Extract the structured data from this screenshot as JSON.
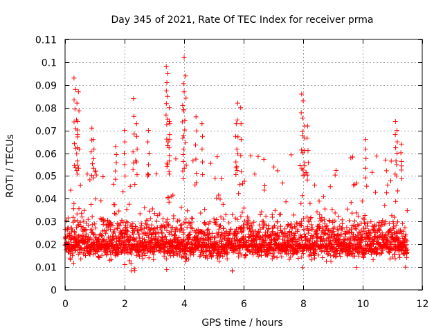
{
  "chart_data": {
    "type": "scatter",
    "title": "Day 345 of 2021, Rate Of TEC Index for receiver prma",
    "xlabel": "GPS time / hours",
    "ylabel": "ROTI / TECUs",
    "xlim": [
      0,
      12
    ],
    "ylim": [
      0,
      0.11
    ],
    "x_ticks": [
      0,
      2,
      4,
      6,
      8,
      10,
      12
    ],
    "x_tick_labels": [
      "0",
      "2",
      "4",
      "6",
      "8",
      "10",
      "12"
    ],
    "y_ticks": [
      0,
      0.01,
      0.02,
      0.03,
      0.04,
      0.05,
      0.06,
      0.07,
      0.08,
      0.09,
      0.1,
      0.11
    ],
    "y_tick_labels": [
      "0",
      "0.01",
      "0.02",
      "0.03",
      "0.04",
      "0.05",
      "0.06",
      "0.07",
      "0.08",
      "0.09",
      "0.1",
      "0.11"
    ],
    "grid": true,
    "marker": "+",
    "color": "#ff0000",
    "series": [
      {
        "name": "ROTI",
        "x_range": [
          0.0,
          11.5
        ],
        "typical_range": [
          0.008,
          0.045
        ],
        "median_estimate": 0.02,
        "peaks": [
          {
            "x": 0.3,
            "y": 0.093
          },
          {
            "x": 0.35,
            "y": 0.088
          },
          {
            "x": 0.4,
            "y": 0.082
          },
          {
            "x": 0.42,
            "y": 0.074
          },
          {
            "x": 0.45,
            "y": 0.087
          },
          {
            "x": 0.9,
            "y": 0.071
          },
          {
            "x": 0.95,
            "y": 0.066
          },
          {
            "x": 1.7,
            "y": 0.063
          },
          {
            "x": 2.0,
            "y": 0.07
          },
          {
            "x": 2.3,
            "y": 0.084
          },
          {
            "x": 2.4,
            "y": 0.073
          },
          {
            "x": 2.8,
            "y": 0.07
          },
          {
            "x": 3.4,
            "y": 0.098
          },
          {
            "x": 3.45,
            "y": 0.095
          },
          {
            "x": 3.42,
            "y": 0.091
          },
          {
            "x": 3.5,
            "y": 0.08
          },
          {
            "x": 3.5,
            "y": 0.074
          },
          {
            "x": 4.0,
            "y": 0.102
          },
          {
            "x": 4.05,
            "y": 0.094
          },
          {
            "x": 4.0,
            "y": 0.087
          },
          {
            "x": 3.95,
            "y": 0.081
          },
          {
            "x": 4.4,
            "y": 0.076
          },
          {
            "x": 4.6,
            "y": 0.073
          },
          {
            "x": 5.8,
            "y": 0.082
          },
          {
            "x": 5.9,
            "y": 0.08
          },
          {
            "x": 5.75,
            "y": 0.073
          },
          {
            "x": 7.95,
            "y": 0.086
          },
          {
            "x": 8.0,
            "y": 0.083
          },
          {
            "x": 8.05,
            "y": 0.072
          },
          {
            "x": 8.15,
            "y": 0.072
          },
          {
            "x": 10.1,
            "y": 0.066
          },
          {
            "x": 11.1,
            "y": 0.074
          },
          {
            "x": 11.15,
            "y": 0.07
          },
          {
            "x": 11.3,
            "y": 0.064
          }
        ]
      }
    ]
  }
}
